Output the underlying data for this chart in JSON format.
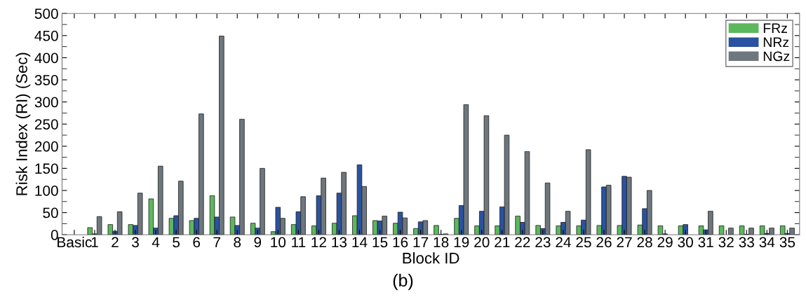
{
  "chart_data": {
    "type": "bar",
    "xlabel": "Block ID",
    "ylabel": "Risk Index (RI) (Sec)",
    "categories": [
      "Basic",
      "1",
      "2",
      "3",
      "4",
      "5",
      "6",
      "7",
      "8",
      "9",
      "10",
      "11",
      "12",
      "13",
      "14",
      "15",
      "16",
      "17",
      "18",
      "19",
      "20",
      "21",
      "22",
      "23",
      "24",
      "25",
      "26",
      "27",
      "28",
      "29",
      "30",
      "31",
      "32",
      "33",
      "34",
      "35"
    ],
    "series": [
      {
        "name": "FRz",
        "color": "#5cb85c",
        "values": [
          0,
          16,
          23,
          23,
          81,
          37,
          32,
          88,
          40,
          26,
          7,
          23,
          20,
          26,
          43,
          32,
          26,
          14,
          21,
          37,
          20,
          20,
          42,
          21,
          20,
          20,
          21,
          21,
          22,
          20,
          20,
          20,
          20,
          20,
          20,
          20
        ]
      },
      {
        "name": "NRz",
        "color": "#2a52a0",
        "values": [
          0,
          2,
          8,
          21,
          15,
          43,
          37,
          40,
          21,
          15,
          62,
          52,
          88,
          94,
          158,
          31,
          51,
          29,
          1,
          66,
          53,
          63,
          28,
          14,
          28,
          33,
          108,
          132,
          59,
          2,
          23,
          11,
          0,
          1,
          3,
          3
        ]
      },
      {
        "name": "NGz",
        "color": "#6e777d",
        "values": [
          0,
          41,
          52,
          94,
          155,
          121,
          273,
          449,
          261,
          150,
          37,
          86,
          128,
          141,
          109,
          42,
          38,
          32,
          2,
          294,
          269,
          225,
          188,
          117,
          53,
          192,
          112,
          130,
          100,
          null,
          null,
          53,
          15,
          15,
          15,
          15
        ]
      }
    ],
    "ylim": [
      0,
      500
    ],
    "yticks": [
      0,
      50,
      100,
      150,
      200,
      250,
      300,
      350,
      400,
      450,
      500
    ],
    "grid": false,
    "legend": "top right",
    "annotations": [
      "(b)"
    ]
  }
}
